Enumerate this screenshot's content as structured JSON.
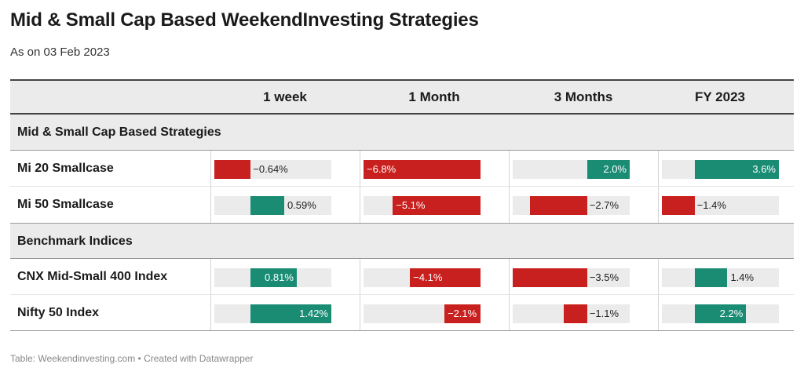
{
  "title": "Mid & Small Cap Based WeekendInvesting Strategies",
  "subtitle": "As on 03 Feb 2023",
  "footer": "Table: Weekendinvesting.com • Created with Datawrapper",
  "colors": {
    "positive": "#1a8c74",
    "negative": "#c8201e",
    "track": "#ebebeb",
    "header_bg": "#ebebeb"
  },
  "columns": [
    "1 week",
    "1 Month",
    "3 Months",
    "FY 2023"
  ],
  "chart_data": {
    "type": "table",
    "title": "Mid & Small Cap Based WeekendInvesting Strategies",
    "subtitle": "As on 03 Feb 2023",
    "columns": [
      "1 week",
      "1 Month",
      "3 Months",
      "FY 2023"
    ],
    "col_ranges": [
      [
        -0.64,
        1.42
      ],
      [
        -6.8,
        0
      ],
      [
        -3.5,
        2.0
      ],
      [
        -1.4,
        3.6
      ]
    ],
    "groups": [
      {
        "name": "Mid & Small Cap Based Strategies",
        "rows": [
          {
            "label": "Mi 20 Smallcase",
            "values": [
              -0.64,
              -6.8,
              2.0,
              3.6
            ],
            "display": [
              "−0.64%",
              "−6.8%",
              "2.0%",
              "3.6%"
            ]
          },
          {
            "label": "Mi 50 Smallcase",
            "values": [
              0.59,
              -5.1,
              -2.7,
              -1.4
            ],
            "display": [
              "0.59%",
              "−5.1%",
              "−2.7%",
              "−1.4%"
            ]
          }
        ]
      },
      {
        "name": "Benchmark Indices",
        "rows": [
          {
            "label": "CNX Mid-Small 400 Index",
            "values": [
              0.81,
              -4.1,
              -3.5,
              1.4
            ],
            "display": [
              "0.81%",
              "−4.1%",
              "−3.5%",
              "1.4%"
            ]
          },
          {
            "label": "Nifty 50 Index",
            "values": [
              1.42,
              -2.1,
              -1.1,
              2.2
            ],
            "display": [
              "1.42%",
              "−2.1%",
              "−1.1%",
              "2.2%"
            ]
          }
        ]
      }
    ]
  }
}
